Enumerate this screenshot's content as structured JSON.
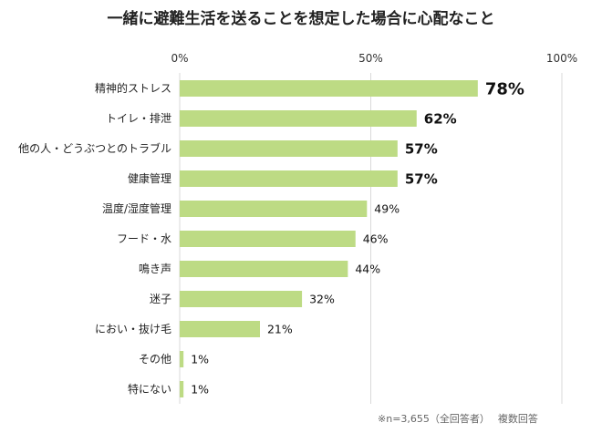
{
  "chart_data": {
    "type": "bar",
    "orientation": "horizontal",
    "title": "一緒に避難生活を送ることを想定した場合に心配なこと",
    "categories": [
      "精神的ストレス",
      "トイレ・排泄",
      "他の人・どうぶつとのトラブル",
      "健康管理",
      "温度/湿度管理",
      "フード・水",
      "鳴き声",
      "迷子",
      "におい・抜け毛",
      "その他",
      "特にない"
    ],
    "values": [
      78,
      62,
      57,
      57,
      49,
      46,
      44,
      32,
      21,
      1,
      1
    ],
    "value_labels": [
      "78%",
      "62%",
      "57%",
      "57%",
      "49%",
      "46%",
      "44%",
      "32%",
      "21%",
      "1%",
      "1%"
    ],
    "highlighted": [
      true,
      true,
      true,
      true,
      false,
      false,
      false,
      false,
      false,
      false,
      false
    ],
    "xlim": [
      0,
      100
    ],
    "x_ticks": [
      "0%",
      "50%",
      "100%"
    ],
    "x_tick_values": [
      0,
      50,
      100
    ],
    "grid": true,
    "bar_color": "#bddb84",
    "note": "※n=3,655（全回答者）　 複数回答"
  }
}
